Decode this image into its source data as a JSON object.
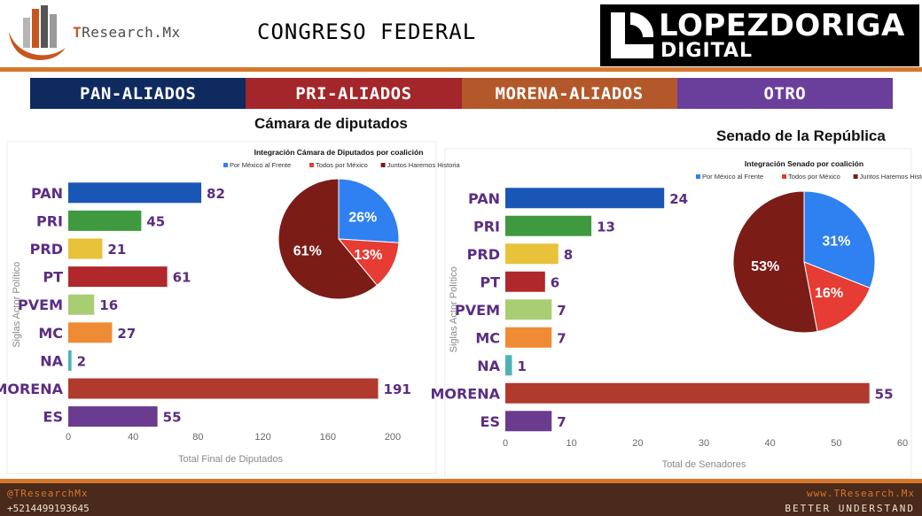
{
  "header": {
    "logo_left_prefix": "T",
    "logo_left_rest": "Research.Mx",
    "title": "CONGRESO FEDERAL",
    "logo_right_line1": "LOPEZDORIGA",
    "logo_right_line2": "DIGITAL"
  },
  "coalitions": [
    {
      "label": "PAN-ALIADOS",
      "color": "#0f2a5e"
    },
    {
      "label": "PRI-ALIADOS",
      "color": "#a3262a"
    },
    {
      "label": "MORENA-ALIADOS",
      "color": "#b3582a"
    },
    {
      "label": "OTRO",
      "color": "#6a3f9c"
    }
  ],
  "chart_data": [
    {
      "type": "bar",
      "orientation": "horizontal",
      "title": "Cámara de diputados",
      "categories": [
        "PAN",
        "PRI",
        "PRD",
        "PT",
        "PVEM",
        "MC",
        "NA",
        "MORENA",
        "ES"
      ],
      "values": [
        82,
        45,
        21,
        61,
        16,
        27,
        2,
        191,
        55
      ],
      "colors": [
        "#1a56b5",
        "#3f9a3f",
        "#e8c23a",
        "#b0282b",
        "#a9cd72",
        "#ef8b35",
        "#4fb0b8",
        "#b03a2e",
        "#6a3b8e"
      ],
      "xlabel": "Total Final de Diputados",
      "ylabel": "Siglas Actor Político",
      "xlim": [
        0,
        200
      ],
      "xticks": [
        0,
        40,
        80,
        120,
        160,
        200
      ],
      "grid": false
    },
    {
      "type": "pie",
      "title": "Integración Cámara de Diputados por coalición",
      "legend": "top",
      "labels": [
        "Por México al Frente",
        "Todos por México",
        "Juntos Haremos Historia"
      ],
      "values": [
        26,
        13,
        61
      ],
      "value_labels": [
        "26%",
        "13%",
        "61%"
      ],
      "colors": [
        "#2f80f0",
        "#e63c33",
        "#7b1c17"
      ]
    },
    {
      "type": "bar",
      "orientation": "horizontal",
      "title": "Senado de la República",
      "categories": [
        "PAN",
        "PRI",
        "PRD",
        "PT",
        "PVEM",
        "MC",
        "NA",
        "MORENA",
        "ES"
      ],
      "values": [
        24,
        13,
        8,
        6,
        7,
        7,
        1,
        55,
        7
      ],
      "colors": [
        "#1a56b5",
        "#3f9a3f",
        "#e8c23a",
        "#b0282b",
        "#a9cd72",
        "#ef8b35",
        "#4fb0b8",
        "#b03a2e",
        "#6a3b8e"
      ],
      "xlabel": "Total de Senadores",
      "ylabel": "Siglas Actor Político",
      "xlim": [
        0,
        60
      ],
      "xticks": [
        0,
        10,
        20,
        30,
        40,
        50,
        60
      ],
      "grid": false
    },
    {
      "type": "pie",
      "title": "Integración Senado por coalición",
      "legend": "top",
      "labels": [
        "Por México al Frente",
        "Todos por México",
        "Juntos Haremos Historia"
      ],
      "values": [
        31,
        16,
        53
      ],
      "value_labels": [
        "31%",
        "16%",
        "53%"
      ],
      "colors": [
        "#2f80f0",
        "#e63c33",
        "#7b1c17"
      ]
    }
  ],
  "footer": {
    "handle": "@TResearchMx",
    "phone": "+5214499193645",
    "website": "www.TResearch.Mx",
    "tagline": "BETTER UNDERSTAND"
  }
}
